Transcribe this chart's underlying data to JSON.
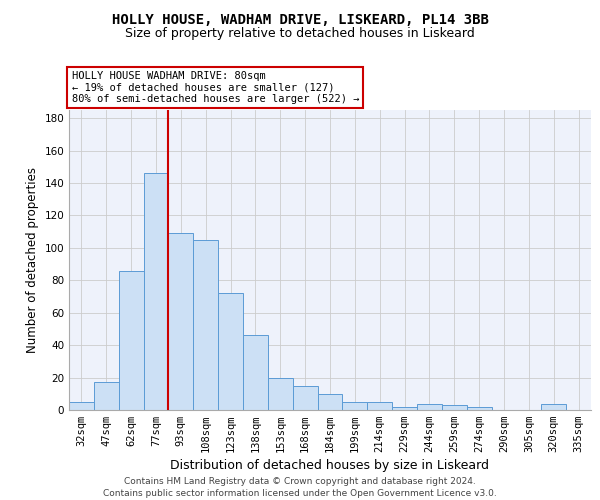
{
  "title1": "HOLLY HOUSE, WADHAM DRIVE, LISKEARD, PL14 3BB",
  "title2": "Size of property relative to detached houses in Liskeard",
  "xlabel": "Distribution of detached houses by size in Liskeard",
  "ylabel": "Number of detached properties",
  "footer1": "Contains HM Land Registry data © Crown copyright and database right 2024.",
  "footer2": "Contains public sector information licensed under the Open Government Licence v3.0.",
  "categories": [
    "32sqm",
    "47sqm",
    "62sqm",
    "77sqm",
    "93sqm",
    "108sqm",
    "123sqm",
    "138sqm",
    "153sqm",
    "168sqm",
    "184sqm",
    "199sqm",
    "214sqm",
    "229sqm",
    "244sqm",
    "259sqm",
    "274sqm",
    "290sqm",
    "305sqm",
    "320sqm",
    "335sqm"
  ],
  "values": [
    5,
    17,
    86,
    146,
    109,
    105,
    72,
    46,
    20,
    15,
    10,
    5,
    5,
    2,
    4,
    3,
    2,
    0,
    0,
    4,
    0
  ],
  "bar_color": "#cce0f5",
  "bar_edge_color": "#5b9bd5",
  "vline_color": "#cc0000",
  "annotation_text": "HOLLY HOUSE WADHAM DRIVE: 80sqm\n← 19% of detached houses are smaller (127)\n80% of semi-detached houses are larger (522) →",
  "annotation_box_color": "white",
  "annotation_box_edge": "#cc0000",
  "ylim": [
    0,
    185
  ],
  "yticks": [
    0,
    20,
    40,
    60,
    80,
    100,
    120,
    140,
    160,
    180
  ],
  "background_color": "#eef2fb",
  "grid_color": "#cccccc",
  "title1_fontsize": 10,
  "title2_fontsize": 9,
  "xlabel_fontsize": 9,
  "ylabel_fontsize": 8.5,
  "tick_fontsize": 7.5,
  "footer_fontsize": 6.5
}
